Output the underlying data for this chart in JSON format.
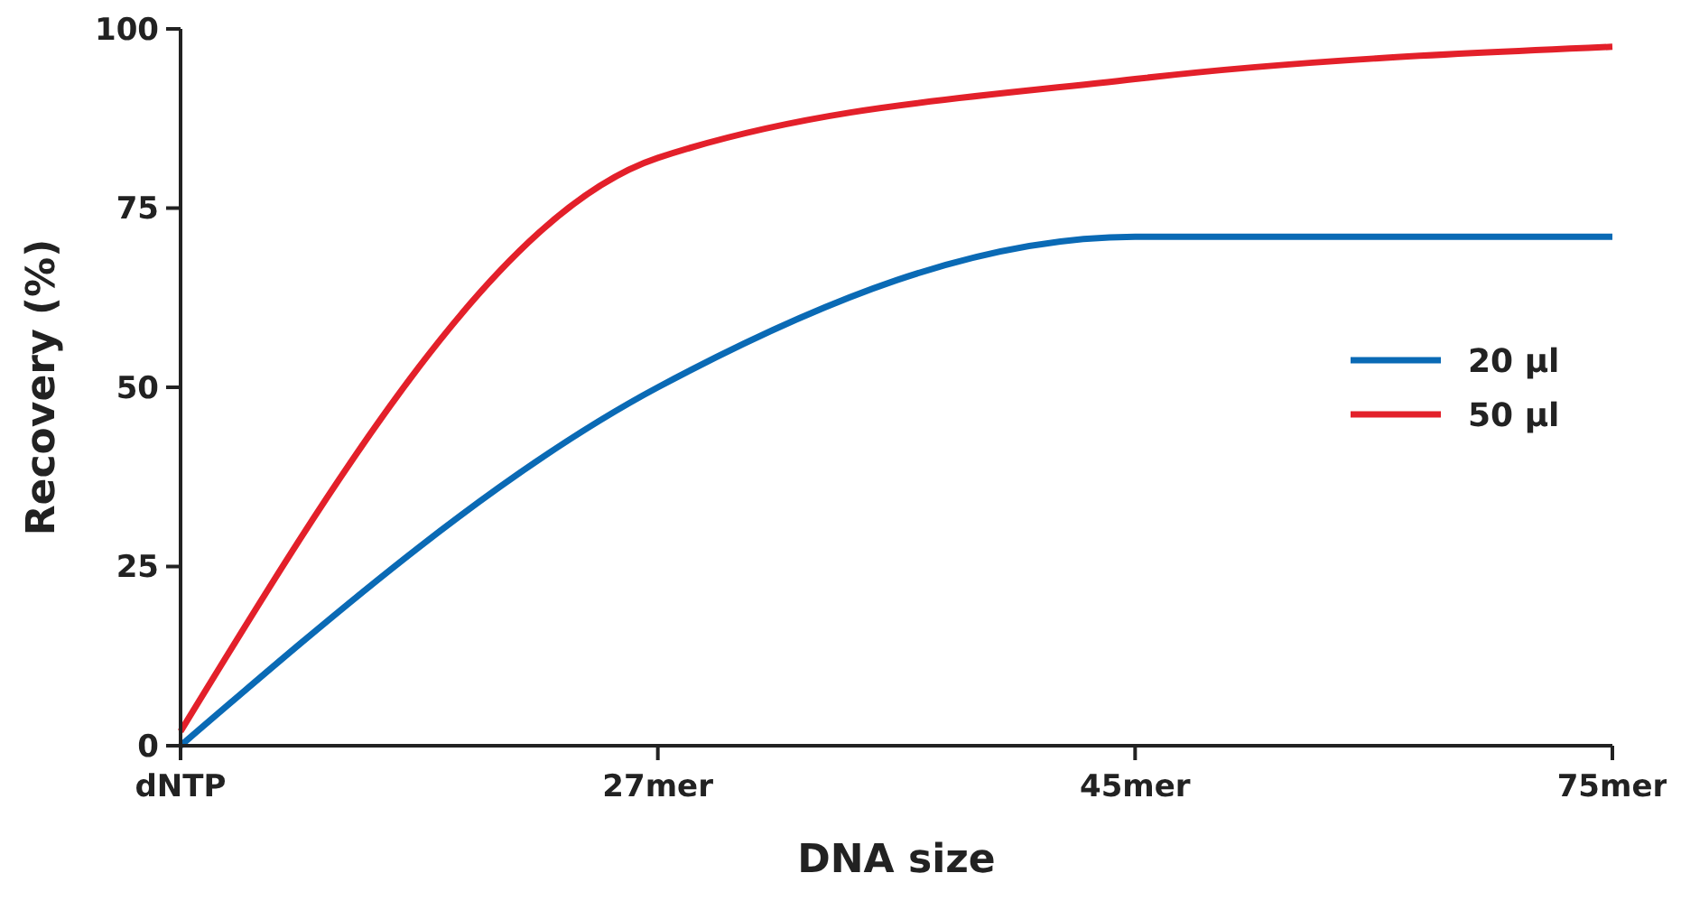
{
  "chart_data": {
    "type": "line",
    "xlabel": "DNA size",
    "ylabel": "Recovery (%)",
    "categories": [
      "dNTP",
      "27mer",
      "45mer",
      "75mer"
    ],
    "series": [
      {
        "name": "20 µl",
        "color": "#0a6ab5",
        "values": [
          0,
          50,
          71,
          71
        ]
      },
      {
        "name": "50 µl",
        "color": "#e3202a",
        "values": [
          2,
          82,
          93,
          97.5
        ]
      }
    ],
    "ylim": [
      0,
      100
    ],
    "yticks": [
      0,
      25,
      50,
      75,
      100
    ],
    "grid": false,
    "legend": "right",
    "marker": "none",
    "line_style": "solid"
  }
}
